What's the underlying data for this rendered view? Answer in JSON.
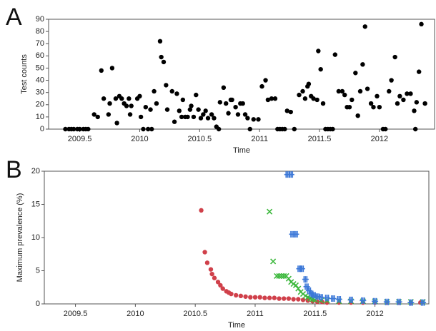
{
  "chart_data": [
    {
      "type": "scatter",
      "label": "A",
      "xlabel": "Time",
      "ylabel": "Test counts",
      "xlim": [
        2009.24,
        2012.46
      ],
      "ylim": [
        0,
        90
      ],
      "xticks": [
        2009.5,
        2010,
        2010.5,
        2011,
        2011.5,
        2012
      ],
      "yticks": [
        0,
        10,
        20,
        30,
        40,
        50,
        60,
        70,
        80,
        90
      ],
      "series": [
        {
          "color": "#000000",
          "marker": "circle",
          "x": [
            2009.38,
            2009.41,
            2009.43,
            2009.45,
            2009.48,
            2009.5,
            2009.53,
            2009.55,
            2009.57,
            2009.62,
            2009.65,
            2009.68,
            2009.7,
            2009.74,
            2009.75,
            2009.77,
            2009.8,
            2009.81,
            2009.83,
            2009.85,
            2009.87,
            2009.89,
            2009.91,
            2009.92,
            2009.93,
            2009.98,
            2010,
            2010.01,
            2010.03,
            2010.05,
            2010.07,
            2010.09,
            2010.1,
            2010.12,
            2010.14,
            2010.17,
            2010.18,
            2010.2,
            2010.22,
            2010.23,
            2010.27,
            2010.29,
            2010.31,
            2010.33,
            2010.35,
            2010.36,
            2010.38,
            2010.4,
            2010.42,
            2010.43,
            2010.45,
            2010.47,
            2010.49,
            2010.51,
            2010.53,
            2010.55,
            2010.57,
            2010.6,
            2010.62,
            2010.64,
            2010.66,
            2010.67,
            2010.7,
            2010.72,
            2010.74,
            2010.76,
            2010.77,
            2010.8,
            2010.82,
            2010.84,
            2010.86,
            2010.88,
            2010.9,
            2010.92,
            2010.95,
            2010.99,
            2011.02,
            2011.05,
            2011.07,
            2011.1,
            2011.13,
            2011.15,
            2011.17,
            2011.19,
            2011.21,
            2011.23,
            2011.26,
            2011.29,
            2011.33,
            2011.36,
            2011.38,
            2011.4,
            2011.41,
            2011.43,
            2011.45,
            2011.48,
            2011.49,
            2011.51,
            2011.53,
            2011.55,
            2011.57,
            2011.59,
            2011.61,
            2011.63,
            2011.66,
            2011.69,
            2011.71,
            2011.73,
            2011.75,
            2011.77,
            2011.8,
            2011.82,
            2011.84,
            2011.86,
            2011.88,
            2011.9,
            2011.93,
            2011.95,
            2011.98,
            2012,
            2012.03,
            2012.05,
            2012.08,
            2012.1,
            2012.13,
            2012.15,
            2012.17,
            2012.2,
            2012.23,
            2012.26,
            2012.29,
            2012.3,
            2012.31,
            2012.33,
            2012.35,
            2012.38
          ],
          "values": [
            0,
            0,
            0,
            0,
            0,
            0,
            0,
            0,
            0,
            12,
            10,
            48,
            25,
            12,
            21,
            50,
            25,
            5,
            27,
            25,
            21,
            19,
            25,
            12,
            19,
            25,
            27,
            10,
            0,
            18,
            0,
            16,
            0,
            31,
            21,
            72,
            59,
            55,
            36,
            16,
            31,
            6,
            29,
            15,
            10,
            24,
            10,
            10,
            16,
            19,
            10,
            28,
            16,
            9,
            12,
            15,
            9,
            12,
            9,
            2,
            0,
            22,
            34,
            21,
            13,
            24,
            24,
            18,
            12,
            21,
            21,
            12,
            9,
            0,
            8,
            8,
            35,
            40,
            24,
            25,
            25,
            0,
            0,
            0,
            0,
            15,
            14,
            0,
            28,
            31,
            25,
            35,
            37,
            27,
            25,
            24,
            64,
            49,
            21,
            0,
            0,
            0,
            0,
            61,
            31,
            31,
            28,
            18,
            18,
            24,
            46,
            11,
            31,
            53,
            84,
            33,
            21,
            18,
            27,
            18,
            0,
            0,
            31,
            40,
            59,
            21,
            27,
            24,
            29,
            29,
            15,
            0,
            22,
            47,
            86,
            21
          ]
        }
      ]
    },
    {
      "type": "scatter",
      "label": "B",
      "xlabel": "Time",
      "ylabel": "Maximum prevalence (%)",
      "xlim": [
        2009.24,
        2012.45
      ],
      "ylim": [
        0,
        20
      ],
      "xticks": [
        2009.5,
        2010,
        2010.5,
        2011,
        2011.5,
        2012
      ],
      "yticks": [
        0,
        5,
        10,
        15,
        20
      ],
      "series": [
        {
          "color": "#d0404a",
          "marker": "circle",
          "x": [
            2010.55,
            2010.58,
            2010.6,
            2010.63,
            2010.64,
            2010.66,
            2010.69,
            2010.71,
            2010.73,
            2010.76,
            2010.78,
            2010.8,
            2010.84,
            2010.88,
            2010.92,
            2010.96,
            2011.0,
            2011.04,
            2011.08,
            2011.12,
            2011.16,
            2011.2,
            2011.24,
            2011.28,
            2011.32,
            2011.36,
            2011.4,
            2011.44,
            2011.48,
            2011.52,
            2011.56,
            2011.6,
            2011.7,
            2011.8,
            2011.9,
            2012.0,
            2012.1,
            2012.2,
            2012.3,
            2012.38
          ],
          "values": [
            14.1,
            7.8,
            6.2,
            5.2,
            4.5,
            3.9,
            3.3,
            2.8,
            2.3,
            1.9,
            1.7,
            1.5,
            1.3,
            1.2,
            1.1,
            1.0,
            1.0,
            1.0,
            0.9,
            0.9,
            0.9,
            0.8,
            0.8,
            0.8,
            0.7,
            0.7,
            0.6,
            0.5,
            0.4,
            0.3,
            0.3,
            0.2,
            0.2,
            0.2,
            0.2,
            0.2,
            0.2,
            0.2,
            0.2,
            0.2
          ]
        },
        {
          "color": "#3cb83c",
          "marker": "x",
          "x": [
            2011.12,
            2011.15,
            2011.18,
            2011.2,
            2011.22,
            2011.24,
            2011.26,
            2011.28,
            2011.3,
            2011.32,
            2011.34,
            2011.36,
            2011.38,
            2011.4,
            2011.42,
            2011.44,
            2011.46,
            2011.48,
            2011.5,
            2011.55,
            2011.6,
            2011.7,
            2011.8,
            2011.9,
            2012.0,
            2012.1,
            2012.2,
            2012.3,
            2012.4
          ],
          "values": [
            13.9,
            6.4,
            4.2,
            4.2,
            4.2,
            4.2,
            4.2,
            3.8,
            3.3,
            3.0,
            2.8,
            2.3,
            1.8,
            1.5,
            1.2,
            1.0,
            0.8,
            0.7,
            0.6,
            0.5,
            0.5,
            0.4,
            0.4,
            0.4,
            0.4,
            0.3,
            0.3,
            0.3,
            0.3
          ]
        },
        {
          "color": "#3c78d8",
          "marker": "plus",
          "x": [
            2011.27,
            2011.3,
            2011.31,
            2011.34,
            2011.37,
            2011.39,
            2011.42,
            2011.43,
            2011.45,
            2011.47,
            2011.49,
            2011.52,
            2011.55,
            2011.6,
            2011.65,
            2011.7,
            2011.8,
            2011.9,
            2012.0,
            2012.1,
            2012.2,
            2012.3,
            2012.4
          ],
          "values": [
            19.5,
            19.5,
            10.5,
            10.5,
            5.3,
            5.3,
            3.7,
            2.6,
            2.0,
            1.5,
            1.3,
            1.1,
            1.0,
            0.9,
            0.8,
            0.7,
            0.6,
            0.5,
            0.4,
            0.3,
            0.3,
            0.2,
            0.2
          ]
        }
      ]
    }
  ]
}
